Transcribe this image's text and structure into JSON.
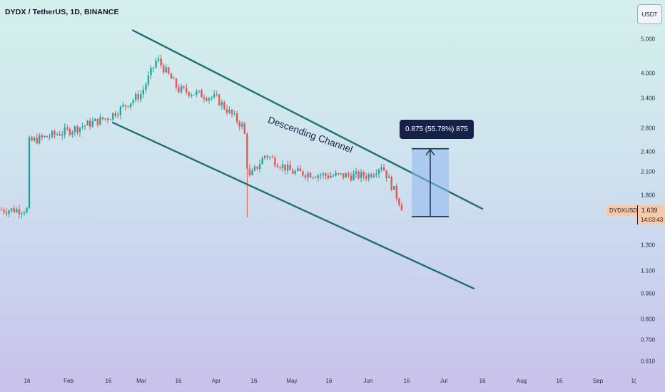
{
  "header": {
    "symbol": "DYDX / TetherUS, 1D, BINANCE",
    "currency_badge": "USDT"
  },
  "colors": {
    "up": "#26a69a",
    "down": "#ef5350",
    "channel": "#1f6f75",
    "measure_fill": "#8fb8f0",
    "measure_label_bg": "#152147",
    "price_tag_bg": "#f7c9a9"
  },
  "price_tag": {
    "symbol": "DYDXUSDT",
    "price": "1.639",
    "countdown": "14:03:43"
  },
  "annotation": {
    "text": "Descending Channel"
  },
  "measure": {
    "label": "0.875 (55.78%) 875",
    "from": 1.568,
    "to": 2.443
  },
  "chart_data": {
    "type": "candlestick",
    "y_scale": "log",
    "y_ticks": [
      "5.000",
      "4.000",
      "3.400",
      "2.800",
      "2.400",
      "2.100",
      "1.800",
      "1.300",
      "1.100",
      "0.950",
      "0.800",
      "0.700",
      "0.610"
    ],
    "y_values": [
      5.0,
      4.0,
      3.4,
      2.8,
      2.4,
      2.1,
      1.8,
      1.3,
      1.1,
      0.95,
      0.8,
      0.7,
      0.61
    ],
    "x_ticks": [
      "16",
      "Feb",
      "16",
      "Mar",
      "16",
      "Apr",
      "16",
      "May",
      "16",
      "Jun",
      "16",
      "Jul",
      "16",
      "Aug",
      "16",
      "Sep",
      "1("
    ],
    "last_price": 1.639,
    "channel": {
      "upper": {
        "start_price": 5.3,
        "end_price": 1.65,
        "start_date": "Mar",
        "end_date": "Jul 16"
      },
      "lower": {
        "start_price": 2.9,
        "end_price": 0.98,
        "start_date": "Feb",
        "end_date": "Jul 16"
      }
    },
    "ohlc_waypoints": [
      {
        "date": "Jan 16",
        "close": 2.55
      },
      {
        "date": "Feb",
        "close": 2.75
      },
      {
        "date": "Feb 16",
        "close": 3.0
      },
      {
        "date": "Mar",
        "close": 3.5
      },
      {
        "date": "Mar 6",
        "close": 4.4
      },
      {
        "date": "Mar 16",
        "close": 3.6
      },
      {
        "date": "Apr",
        "close": 3.4
      },
      {
        "date": "Apr 10",
        "close": 2.8
      },
      {
        "date": "Apr 12",
        "close": 2.0
      },
      {
        "date": "Apr 20",
        "close": 2.35
      },
      {
        "date": "May",
        "close": 2.1
      },
      {
        "date": "May 16",
        "close": 2.05
      },
      {
        "date": "Jun",
        "close": 2.05
      },
      {
        "date": "Jun 5",
        "close": 2.2
      },
      {
        "date": "Jun 12",
        "close": 1.64
      }
    ]
  }
}
